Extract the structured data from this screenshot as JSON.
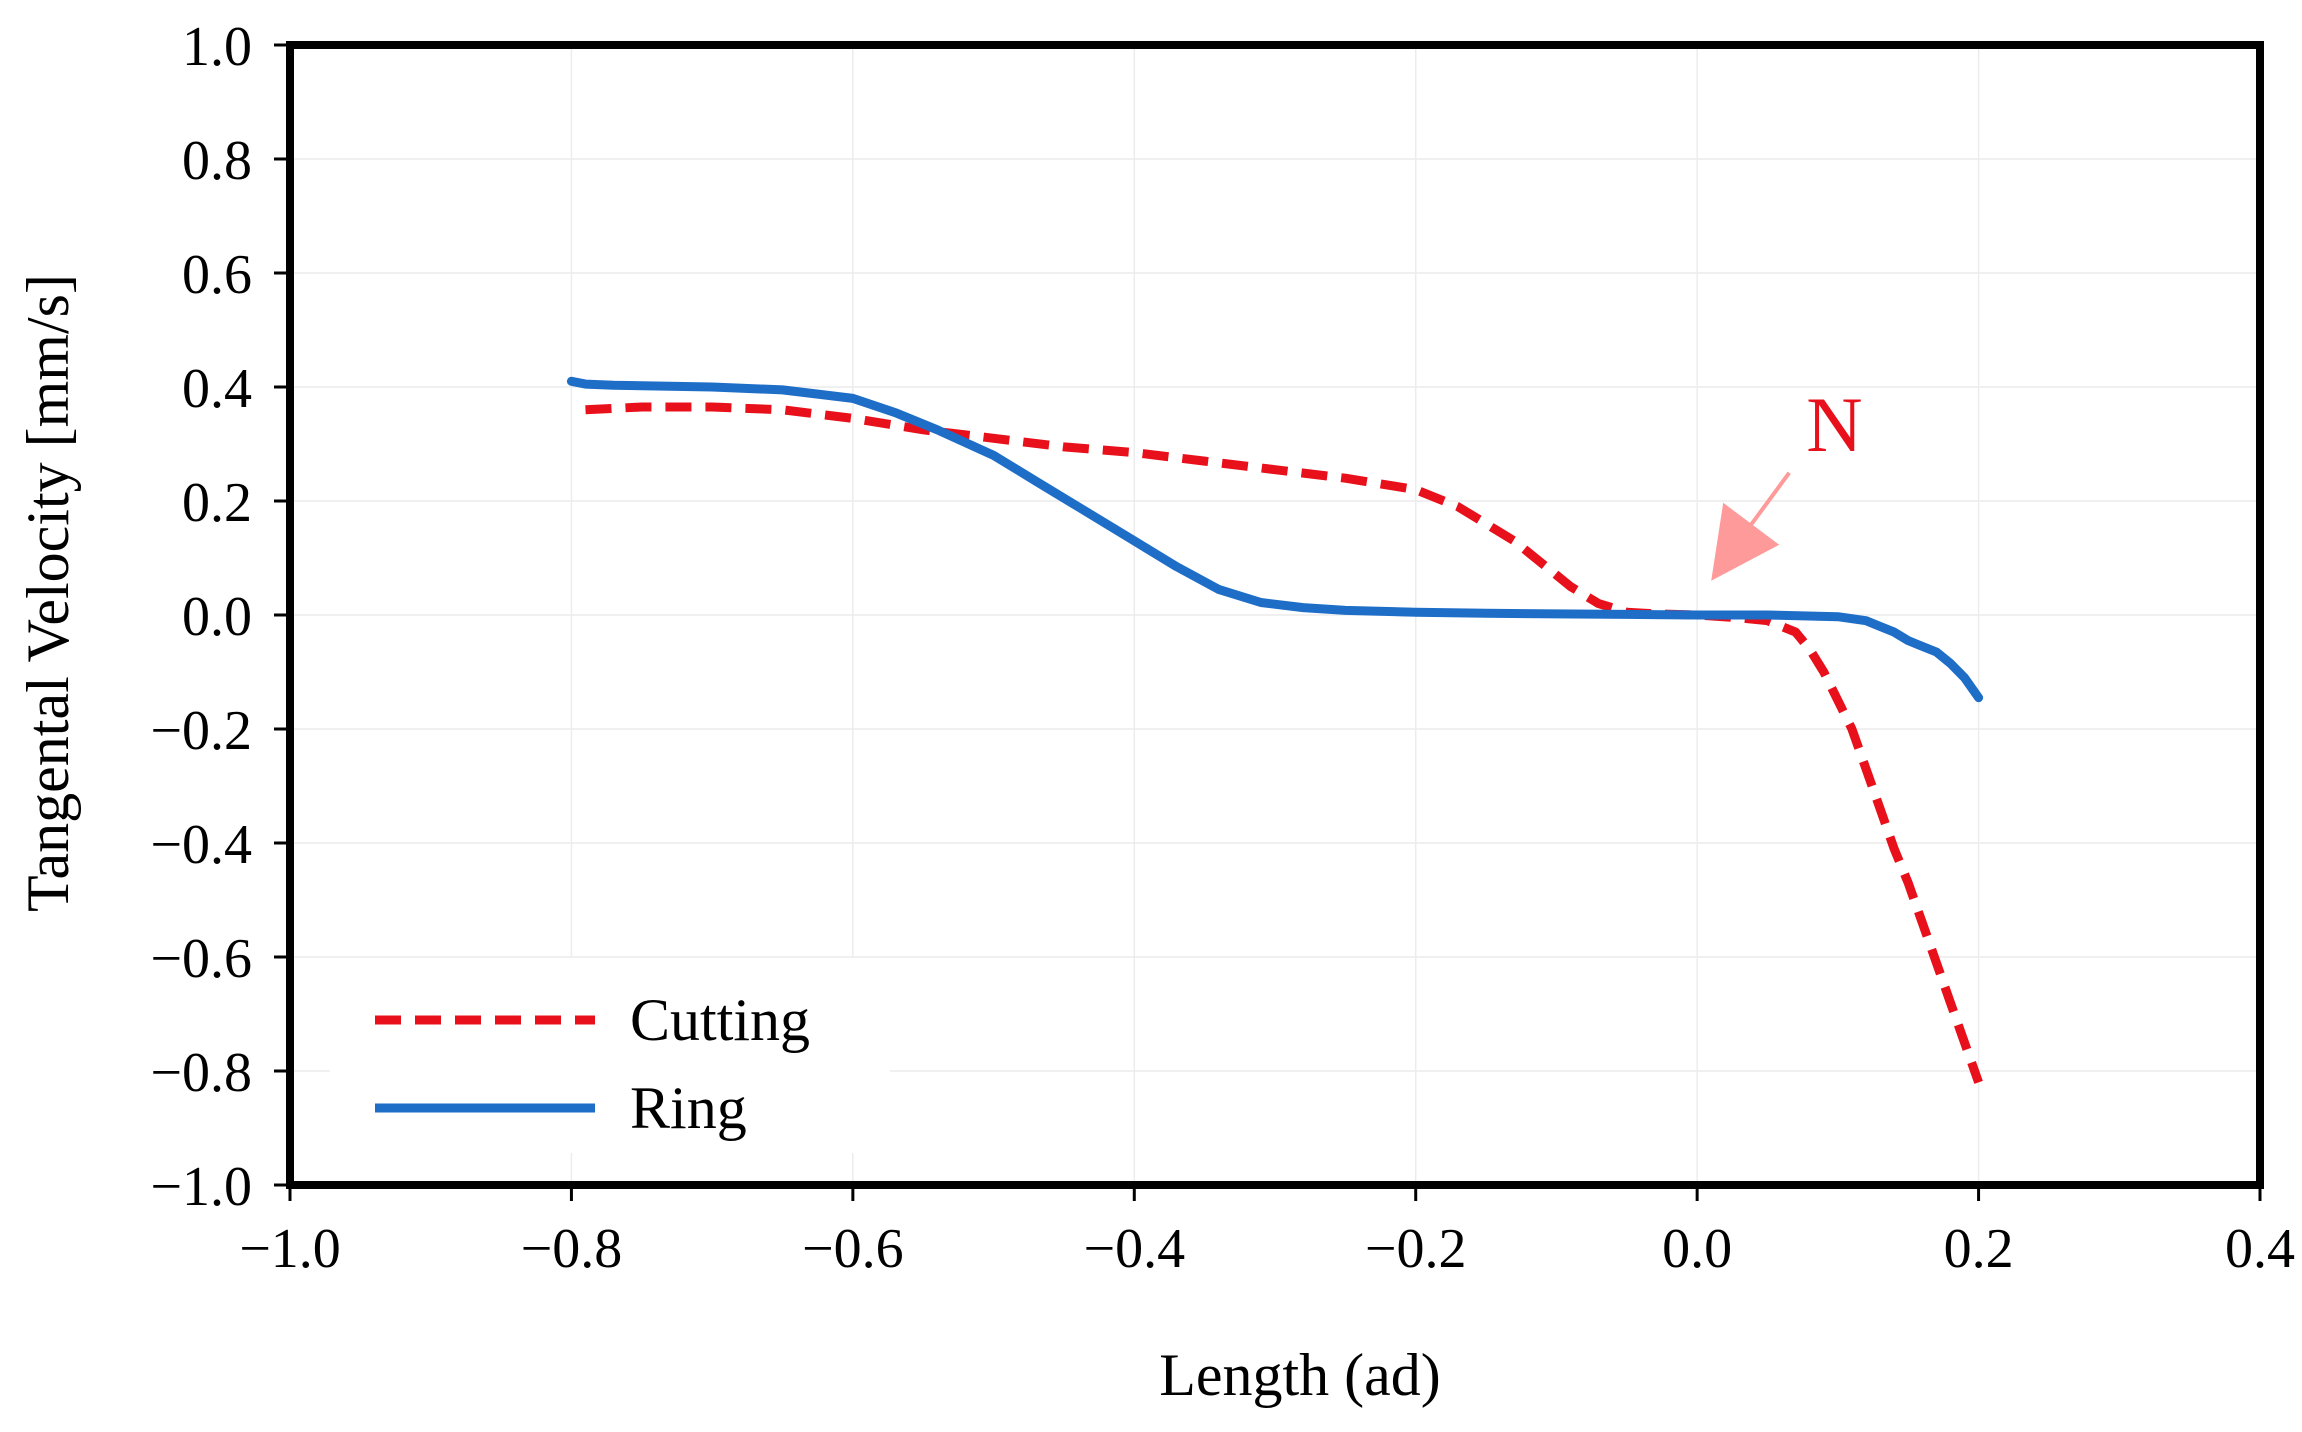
{
  "chart_data": {
    "type": "line",
    "title": "",
    "xlabel": "Length (ad)",
    "ylabel": "Tangental  Velocity [mm/s]",
    "xlim": [
      -1.0,
      0.4
    ],
    "ylim": [
      -1.0,
      1.0
    ],
    "x_ticks": [
      -1.0,
      -0.8,
      -0.6,
      -0.4,
      -0.2,
      0.0,
      0.2,
      0.4
    ],
    "x_tick_labels": [
      "−1.0",
      "−0.8",
      "−0.6",
      "−0.4",
      "−0.2",
      "0.0",
      "0.2",
      "0.4"
    ],
    "y_ticks": [
      1.0,
      0.8,
      0.6,
      0.4,
      0.2,
      0.0,
      -0.2,
      -0.4,
      -0.6,
      -0.8,
      -1.0
    ],
    "y_tick_labels": [
      "1.0",
      "0.8",
      "0.6",
      "0.4",
      "0.2",
      "0.0",
      "−0.2",
      "−0.4",
      "−0.6",
      "−0.8",
      "−1.0"
    ],
    "grid": true,
    "legend_position": "bottom-left",
    "annotation": {
      "text": "N",
      "x": 0.01,
      "y": 0.06,
      "color": "#ff9a9a"
    },
    "series": [
      {
        "name": "Cutting",
        "color": "#e8101a",
        "style": "dashed",
        "x": [
          -0.79,
          -0.75,
          -0.7,
          -0.65,
          -0.6,
          -0.55,
          -0.5,
          -0.45,
          -0.4,
          -0.35,
          -0.3,
          -0.25,
          -0.2,
          -0.17,
          -0.15,
          -0.13,
          -0.11,
          -0.09,
          -0.07,
          -0.05,
          -0.03,
          0.0,
          0.03,
          0.05,
          0.07,
          0.08,
          0.09,
          0.1,
          0.11,
          0.12,
          0.13,
          0.14,
          0.15,
          0.16,
          0.17,
          0.18,
          0.19,
          0.2
        ],
        "y": [
          0.36,
          0.365,
          0.365,
          0.36,
          0.345,
          0.325,
          0.31,
          0.295,
          0.285,
          0.27,
          0.255,
          0.24,
          0.22,
          0.19,
          0.16,
          0.13,
          0.09,
          0.05,
          0.02,
          0.005,
          0.002,
          0.0,
          -0.005,
          -0.01,
          -0.03,
          -0.06,
          -0.1,
          -0.15,
          -0.2,
          -0.27,
          -0.34,
          -0.41,
          -0.47,
          -0.54,
          -0.61,
          -0.68,
          -0.75,
          -0.82
        ]
      },
      {
        "name": "Ring",
        "color": "#1e6ec8",
        "style": "solid",
        "x": [
          -0.8,
          -0.79,
          -0.77,
          -0.7,
          -0.65,
          -0.6,
          -0.57,
          -0.54,
          -0.5,
          -0.47,
          -0.44,
          -0.4,
          -0.37,
          -0.34,
          -0.31,
          -0.28,
          -0.25,
          -0.2,
          -0.15,
          -0.1,
          -0.05,
          0.0,
          0.05,
          0.1,
          0.12,
          0.13,
          0.14,
          0.15,
          0.16,
          0.17,
          0.18,
          0.19,
          0.2
        ],
        "y": [
          0.41,
          0.405,
          0.403,
          0.4,
          0.395,
          0.38,
          0.355,
          0.325,
          0.28,
          0.235,
          0.19,
          0.13,
          0.085,
          0.045,
          0.022,
          0.013,
          0.008,
          0.005,
          0.003,
          0.002,
          0.001,
          0.0,
          0.0,
          -0.003,
          -0.01,
          -0.02,
          -0.03,
          -0.045,
          -0.055,
          -0.065,
          -0.085,
          -0.11,
          -0.145
        ]
      }
    ]
  }
}
